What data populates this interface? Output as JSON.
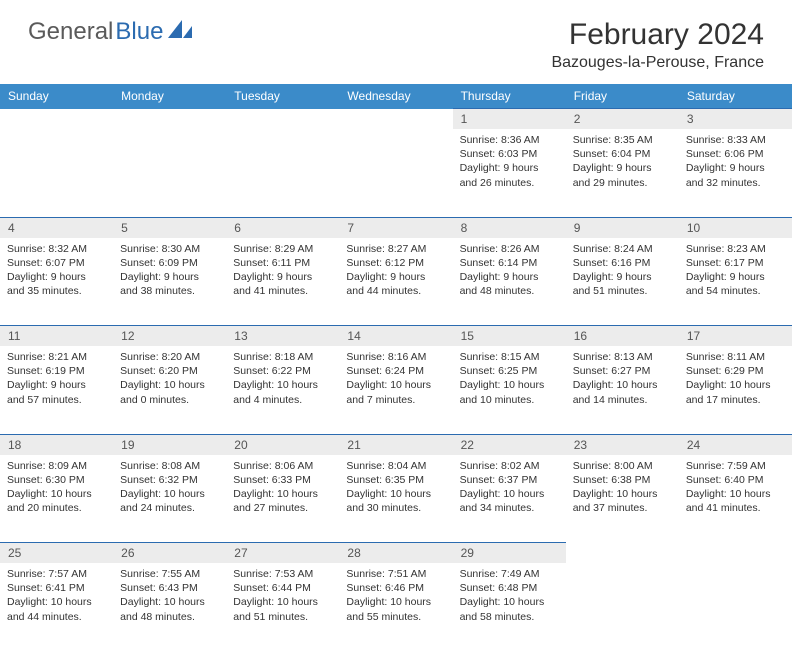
{
  "header": {
    "logo_text_1": "General",
    "logo_text_2": "Blue",
    "month_title": "February 2024",
    "location": "Bazouges-la-Perouse, France"
  },
  "colors": {
    "header_bg": "#3b8bc9",
    "border": "#2b6bb0",
    "daynum_bg": "#ececec",
    "logo_blue": "#2b6bb0"
  },
  "weekdays": [
    "Sunday",
    "Monday",
    "Tuesday",
    "Wednesday",
    "Thursday",
    "Friday",
    "Saturday"
  ],
  "weeks": [
    [
      null,
      null,
      null,
      null,
      {
        "n": "1",
        "sunrise": "8:36 AM",
        "sunset": "6:03 PM",
        "dl1": "9 hours",
        "dl2": "and 26 minutes."
      },
      {
        "n": "2",
        "sunrise": "8:35 AM",
        "sunset": "6:04 PM",
        "dl1": "9 hours",
        "dl2": "and 29 minutes."
      },
      {
        "n": "3",
        "sunrise": "8:33 AM",
        "sunset": "6:06 PM",
        "dl1": "9 hours",
        "dl2": "and 32 minutes."
      }
    ],
    [
      {
        "n": "4",
        "sunrise": "8:32 AM",
        "sunset": "6:07 PM",
        "dl1": "9 hours",
        "dl2": "and 35 minutes."
      },
      {
        "n": "5",
        "sunrise": "8:30 AM",
        "sunset": "6:09 PM",
        "dl1": "9 hours",
        "dl2": "and 38 minutes."
      },
      {
        "n": "6",
        "sunrise": "8:29 AM",
        "sunset": "6:11 PM",
        "dl1": "9 hours",
        "dl2": "and 41 minutes."
      },
      {
        "n": "7",
        "sunrise": "8:27 AM",
        "sunset": "6:12 PM",
        "dl1": "9 hours",
        "dl2": "and 44 minutes."
      },
      {
        "n": "8",
        "sunrise": "8:26 AM",
        "sunset": "6:14 PM",
        "dl1": "9 hours",
        "dl2": "and 48 minutes."
      },
      {
        "n": "9",
        "sunrise": "8:24 AM",
        "sunset": "6:16 PM",
        "dl1": "9 hours",
        "dl2": "and 51 minutes."
      },
      {
        "n": "10",
        "sunrise": "8:23 AM",
        "sunset": "6:17 PM",
        "dl1": "9 hours",
        "dl2": "and 54 minutes."
      }
    ],
    [
      {
        "n": "11",
        "sunrise": "8:21 AM",
        "sunset": "6:19 PM",
        "dl1": "9 hours",
        "dl2": "and 57 minutes."
      },
      {
        "n": "12",
        "sunrise": "8:20 AM",
        "sunset": "6:20 PM",
        "dl1": "10 hours",
        "dl2": "and 0 minutes."
      },
      {
        "n": "13",
        "sunrise": "8:18 AM",
        "sunset": "6:22 PM",
        "dl1": "10 hours",
        "dl2": "and 4 minutes."
      },
      {
        "n": "14",
        "sunrise": "8:16 AM",
        "sunset": "6:24 PM",
        "dl1": "10 hours",
        "dl2": "and 7 minutes."
      },
      {
        "n": "15",
        "sunrise": "8:15 AM",
        "sunset": "6:25 PM",
        "dl1": "10 hours",
        "dl2": "and 10 minutes."
      },
      {
        "n": "16",
        "sunrise": "8:13 AM",
        "sunset": "6:27 PM",
        "dl1": "10 hours",
        "dl2": "and 14 minutes."
      },
      {
        "n": "17",
        "sunrise": "8:11 AM",
        "sunset": "6:29 PM",
        "dl1": "10 hours",
        "dl2": "and 17 minutes."
      }
    ],
    [
      {
        "n": "18",
        "sunrise": "8:09 AM",
        "sunset": "6:30 PM",
        "dl1": "10 hours",
        "dl2": "and 20 minutes."
      },
      {
        "n": "19",
        "sunrise": "8:08 AM",
        "sunset": "6:32 PM",
        "dl1": "10 hours",
        "dl2": "and 24 minutes."
      },
      {
        "n": "20",
        "sunrise": "8:06 AM",
        "sunset": "6:33 PM",
        "dl1": "10 hours",
        "dl2": "and 27 minutes."
      },
      {
        "n": "21",
        "sunrise": "8:04 AM",
        "sunset": "6:35 PM",
        "dl1": "10 hours",
        "dl2": "and 30 minutes."
      },
      {
        "n": "22",
        "sunrise": "8:02 AM",
        "sunset": "6:37 PM",
        "dl1": "10 hours",
        "dl2": "and 34 minutes."
      },
      {
        "n": "23",
        "sunrise": "8:00 AM",
        "sunset": "6:38 PM",
        "dl1": "10 hours",
        "dl2": "and 37 minutes."
      },
      {
        "n": "24",
        "sunrise": "7:59 AM",
        "sunset": "6:40 PM",
        "dl1": "10 hours",
        "dl2": "and 41 minutes."
      }
    ],
    [
      {
        "n": "25",
        "sunrise": "7:57 AM",
        "sunset": "6:41 PM",
        "dl1": "10 hours",
        "dl2": "and 44 minutes."
      },
      {
        "n": "26",
        "sunrise": "7:55 AM",
        "sunset": "6:43 PM",
        "dl1": "10 hours",
        "dl2": "and 48 minutes."
      },
      {
        "n": "27",
        "sunrise": "7:53 AM",
        "sunset": "6:44 PM",
        "dl1": "10 hours",
        "dl2": "and 51 minutes."
      },
      {
        "n": "28",
        "sunrise": "7:51 AM",
        "sunset": "6:46 PM",
        "dl1": "10 hours",
        "dl2": "and 55 minutes."
      },
      {
        "n": "29",
        "sunrise": "7:49 AM",
        "sunset": "6:48 PM",
        "dl1": "10 hours",
        "dl2": "and 58 minutes."
      },
      null,
      null
    ]
  ],
  "labels": {
    "sunrise": "Sunrise:",
    "sunset": "Sunset:",
    "daylight": "Daylight:"
  }
}
